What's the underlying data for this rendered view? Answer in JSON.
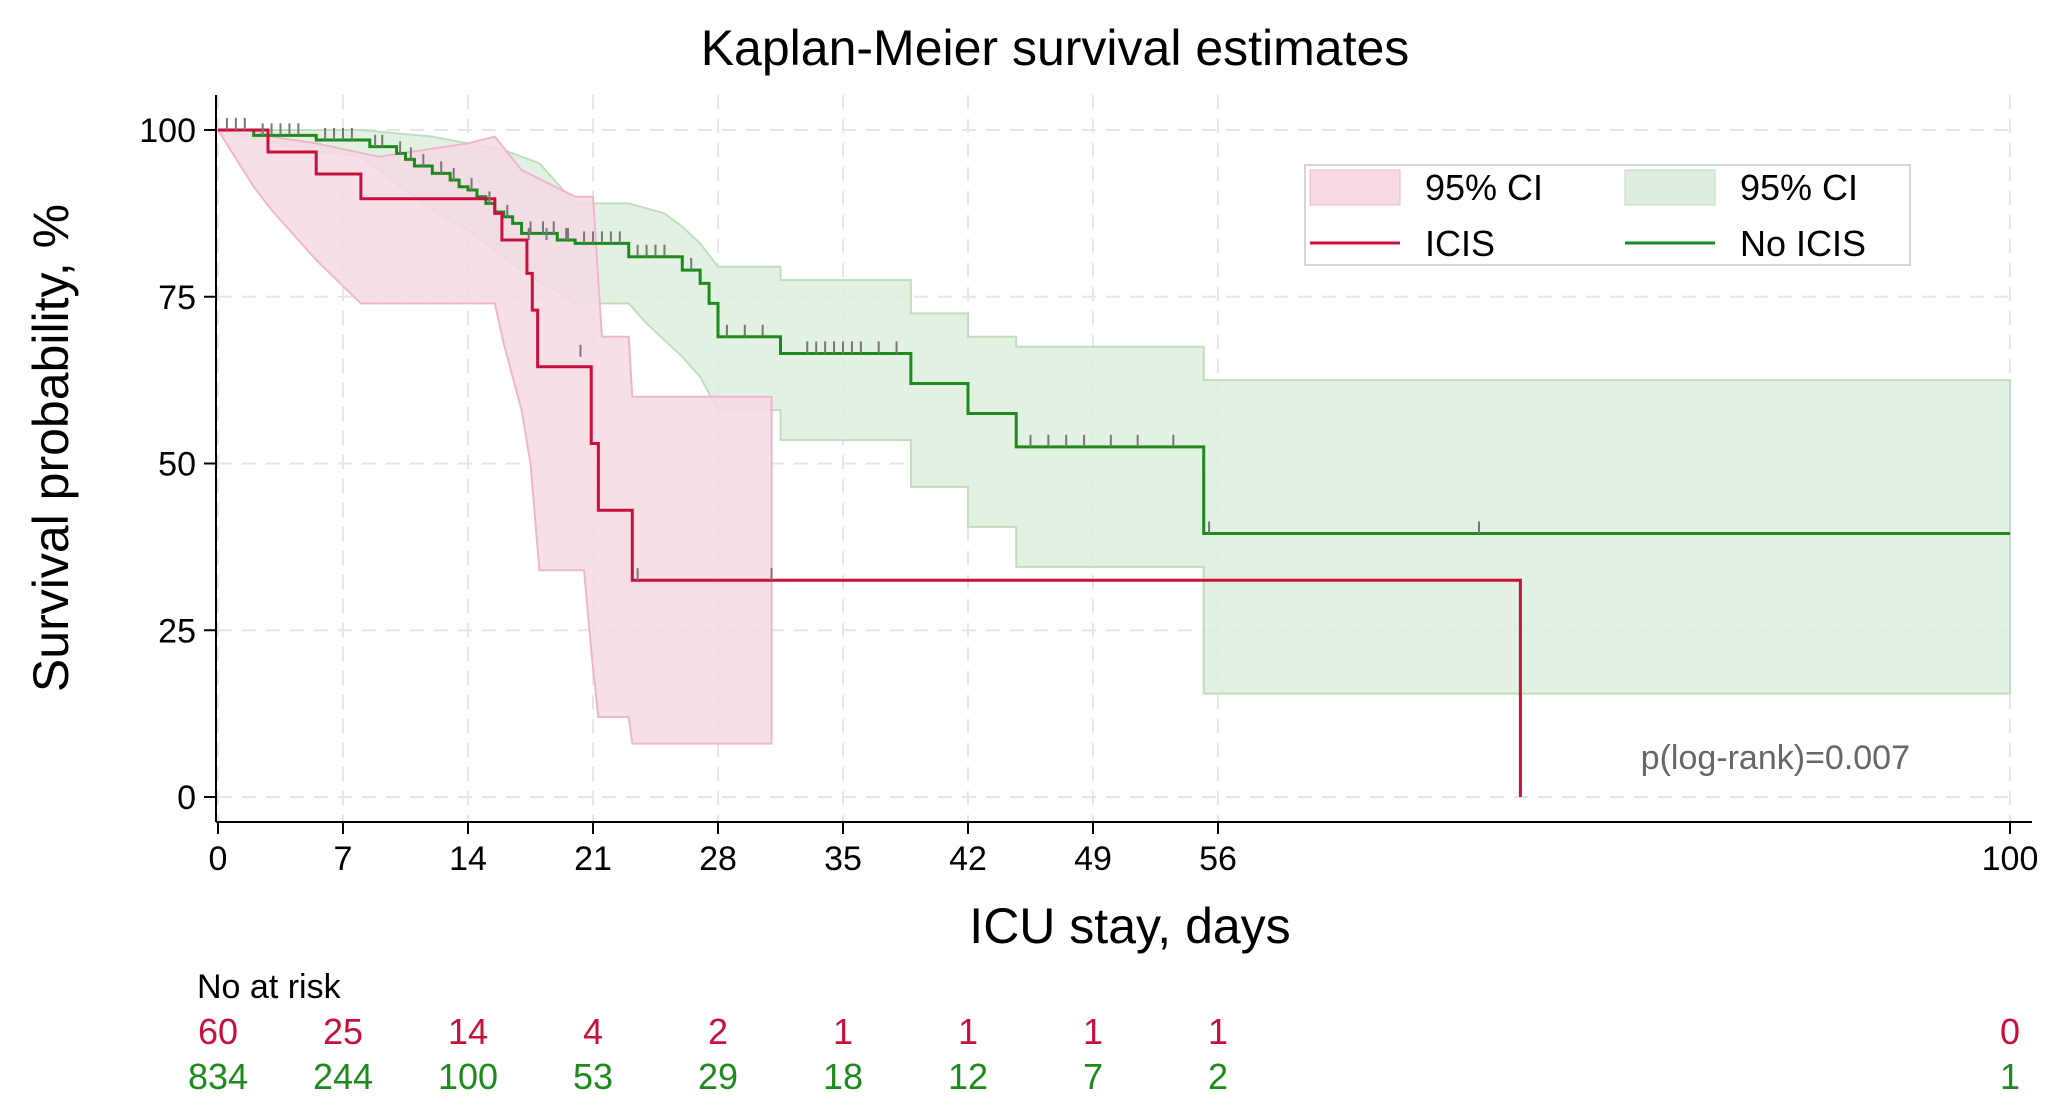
{
  "chart_data": {
    "type": "kaplan-meier",
    "title": "Kaplan-Meier survival estimates",
    "xlabel": "ICU stay, days",
    "ylabel": "Survival probability, %",
    "x_ticks": [
      "0",
      "7",
      "14",
      "21",
      "28",
      "35",
      "42",
      "49",
      "56",
      "100"
    ],
    "x_tick_values": [
      0,
      7,
      14,
      21,
      28,
      35,
      42,
      49,
      56,
      100
    ],
    "y_ticks": [
      "0",
      "25",
      "50",
      "75",
      "100"
    ],
    "y_tick_values": [
      0,
      25,
      50,
      75,
      100
    ],
    "xlim": [
      0,
      100
    ],
    "ylim": [
      0,
      100
    ],
    "grid": true,
    "legend_position": "top-right",
    "legend": {
      "ci_icis": "95% CI",
      "ci_noicis": "95% CI",
      "icis": "ICIS",
      "noicis": "No ICIS"
    },
    "annotation": "p(log-rank)=0.007",
    "colors": {
      "icis": "#c8103c",
      "noicis": "#1e8a1e",
      "icis_ci_fill": "#f6d9e4",
      "icis_ci_edge": "#eeb6cc",
      "noicis_ci_fill": "#deeede",
      "noicis_ci_edge": "#bfdcbf",
      "censor": "#777777"
    },
    "series": [
      {
        "name": "ICIS",
        "steps": [
          [
            0,
            100
          ],
          [
            1.8,
            100
          ],
          [
            2.8,
            96.7
          ],
          [
            5.5,
            93.4
          ],
          [
            8,
            89.7
          ],
          [
            14.5,
            89.7
          ],
          [
            15.5,
            87.5
          ],
          [
            15.9,
            83.5
          ],
          [
            17,
            83.5
          ],
          [
            17.3,
            78.5
          ],
          [
            17.6,
            73
          ],
          [
            17.9,
            64.5
          ],
          [
            20.6,
            64.5
          ],
          [
            20.9,
            53
          ],
          [
            21.3,
            43
          ],
          [
            23,
            43
          ],
          [
            23.2,
            32.5
          ],
          [
            72.8,
            32.5
          ],
          [
            72.8,
            0
          ]
        ],
        "ci_upper": [
          [
            0,
            100
          ],
          [
            2,
            100
          ],
          [
            3,
            99
          ],
          [
            5.5,
            98
          ],
          [
            9,
            96
          ],
          [
            14,
            98
          ],
          [
            15.5,
            99
          ],
          [
            17,
            94
          ],
          [
            20,
            90
          ],
          [
            21,
            90
          ],
          [
            21.5,
            69
          ],
          [
            23,
            69
          ],
          [
            23.2,
            60
          ],
          [
            31,
            60
          ],
          [
            31,
            56
          ]
        ],
        "ci_lower": [
          [
            0,
            100
          ],
          [
            2,
            91.5
          ],
          [
            3,
            88
          ],
          [
            5.5,
            80.5
          ],
          [
            8,
            74
          ],
          [
            14,
            74
          ],
          [
            15.5,
            74
          ],
          [
            16,
            68
          ],
          [
            17,
            58
          ],
          [
            17.5,
            50
          ],
          [
            18,
            34
          ],
          [
            20.5,
            34
          ],
          [
            20.9,
            22
          ],
          [
            21.3,
            12
          ],
          [
            23,
            12
          ],
          [
            23.2,
            8
          ],
          [
            31,
            8
          ],
          [
            31,
            8
          ]
        ],
        "censored": [
          [
            17.4,
            83.5
          ],
          [
            18.4,
            83.5
          ],
          [
            19.6,
            83.5
          ],
          [
            20.3,
            66
          ],
          [
            23.5,
            32.5
          ],
          [
            31,
            32.5
          ]
        ],
        "at_risk": [
          "60",
          "25",
          "14",
          "4",
          "2",
          "1",
          "1",
          "1",
          "1",
          "0"
        ]
      },
      {
        "name": "No ICIS",
        "steps": [
          [
            0,
            100
          ],
          [
            2,
            100
          ],
          [
            2,
            99.2
          ],
          [
            5,
            99.2
          ],
          [
            5.5,
            98.5
          ],
          [
            8,
            98.5
          ],
          [
            8.5,
            97.5
          ],
          [
            9.5,
            97.5
          ],
          [
            10,
            96.5
          ],
          [
            10.5,
            95.6
          ],
          [
            11,
            94.6
          ],
          [
            12,
            93.5
          ],
          [
            13,
            92.5
          ],
          [
            13.5,
            91.5
          ],
          [
            14,
            91
          ],
          [
            14.5,
            90
          ],
          [
            15,
            89
          ],
          [
            15.5,
            87.7
          ],
          [
            16,
            87
          ],
          [
            16.5,
            86
          ],
          [
            17,
            84.5
          ],
          [
            19,
            84.5
          ],
          [
            19,
            83.5
          ],
          [
            20,
            83.5
          ],
          [
            20,
            83
          ],
          [
            23,
            83
          ],
          [
            23,
            81
          ],
          [
            25.5,
            81
          ],
          [
            26,
            79
          ],
          [
            27,
            77
          ],
          [
            27.5,
            74
          ],
          [
            28,
            72.5
          ],
          [
            28,
            69
          ],
          [
            31.5,
            69
          ],
          [
            31.5,
            66.5
          ],
          [
            38.8,
            66.5
          ],
          [
            38.8,
            62
          ],
          [
            42,
            62
          ],
          [
            42,
            57.5
          ],
          [
            44.7,
            57.5
          ],
          [
            44.7,
            52.5
          ],
          [
            55.2,
            52.5
          ],
          [
            55.2,
            39.5
          ],
          [
            100,
            39.5
          ]
        ],
        "ci_upper": [
          [
            0,
            100
          ],
          [
            8,
            100
          ],
          [
            12,
            99
          ],
          [
            14,
            98
          ],
          [
            16,
            97
          ],
          [
            17,
            96
          ],
          [
            18,
            95
          ],
          [
            20,
            89
          ],
          [
            23,
            89
          ],
          [
            25,
            87.5
          ],
          [
            26,
            85.5
          ],
          [
            27,
            83
          ],
          [
            28,
            79.5
          ],
          [
            31.5,
            79.5
          ],
          [
            31.5,
            77.5
          ],
          [
            38.8,
            77.5
          ],
          [
            38.8,
            72.5
          ],
          [
            42,
            72.5
          ],
          [
            42,
            69
          ],
          [
            44.7,
            69
          ],
          [
            44.7,
            67.5
          ],
          [
            55.2,
            67.5
          ],
          [
            55.2,
            62.5
          ],
          [
            100,
            62.5
          ]
        ],
        "ci_lower": [
          [
            0,
            100
          ],
          [
            5,
            97
          ],
          [
            8,
            96
          ],
          [
            10,
            92
          ],
          [
            12,
            88
          ],
          [
            14,
            85
          ],
          [
            15,
            83
          ],
          [
            16,
            81
          ],
          [
            17,
            79
          ],
          [
            18,
            77
          ],
          [
            19,
            76
          ],
          [
            20,
            74
          ],
          [
            23,
            74
          ],
          [
            24,
            71
          ],
          [
            26,
            66
          ],
          [
            27,
            63
          ],
          [
            28,
            58
          ],
          [
            31.5,
            58
          ],
          [
            31.5,
            53.5
          ],
          [
            38.8,
            53.5
          ],
          [
            38.8,
            46.5
          ],
          [
            42,
            46.5
          ],
          [
            42,
            40.5
          ],
          [
            44.7,
            40.5
          ],
          [
            44.7,
            34.5
          ],
          [
            55.2,
            34.5
          ],
          [
            55.2,
            15.5
          ],
          [
            100,
            15.5
          ]
        ],
        "censored": [
          [
            0.5,
            100
          ],
          [
            1,
            100
          ],
          [
            1.5,
            100
          ],
          [
            2.5,
            99.2
          ],
          [
            3,
            99.2
          ],
          [
            3.5,
            99.2
          ],
          [
            4,
            99.2
          ],
          [
            4.5,
            99.2
          ],
          [
            6,
            98.5
          ],
          [
            6.5,
            98.5
          ],
          [
            7,
            98.5
          ],
          [
            7.5,
            98.5
          ],
          [
            8.8,
            97.5
          ],
          [
            9.2,
            97.5
          ],
          [
            10.2,
            96.5
          ],
          [
            10.8,
            95.6
          ],
          [
            11.5,
            94.6
          ],
          [
            12.5,
            93.5
          ],
          [
            13.2,
            92.5
          ],
          [
            14.2,
            91
          ],
          [
            15.2,
            89
          ],
          [
            16.2,
            87
          ],
          [
            17.5,
            84.5
          ],
          [
            18.2,
            84.5
          ],
          [
            18.8,
            84.5
          ],
          [
            19.5,
            83.5
          ],
          [
            20.5,
            83
          ],
          [
            21,
            83
          ],
          [
            21.5,
            83
          ],
          [
            22,
            83
          ],
          [
            22.5,
            83
          ],
          [
            23.5,
            81
          ],
          [
            24,
            81
          ],
          [
            24.5,
            81
          ],
          [
            25,
            81
          ],
          [
            26.5,
            79
          ],
          [
            28.5,
            69
          ],
          [
            29.5,
            69
          ],
          [
            30.5,
            69
          ],
          [
            33,
            66.5
          ],
          [
            33.5,
            66.5
          ],
          [
            34,
            66.5
          ],
          [
            34.5,
            66.5
          ],
          [
            35,
            66.5
          ],
          [
            35.5,
            66.5
          ],
          [
            36,
            66.5
          ],
          [
            37,
            66.5
          ],
          [
            38,
            66.5
          ],
          [
            45.5,
            52.5
          ],
          [
            46.5,
            52.5
          ],
          [
            47.5,
            52.5
          ],
          [
            48.5,
            52.5
          ],
          [
            50,
            52.5
          ],
          [
            51.5,
            52.5
          ],
          [
            53.5,
            52.5
          ],
          [
            55.5,
            39.5
          ],
          [
            70.5,
            39.5
          ]
        ],
        "at_risk": [
          "834",
          "244",
          "100",
          "53",
          "29",
          "18",
          "12",
          "7",
          "2",
          "1"
        ]
      }
    ],
    "at_risk_title": "No at risk"
  }
}
